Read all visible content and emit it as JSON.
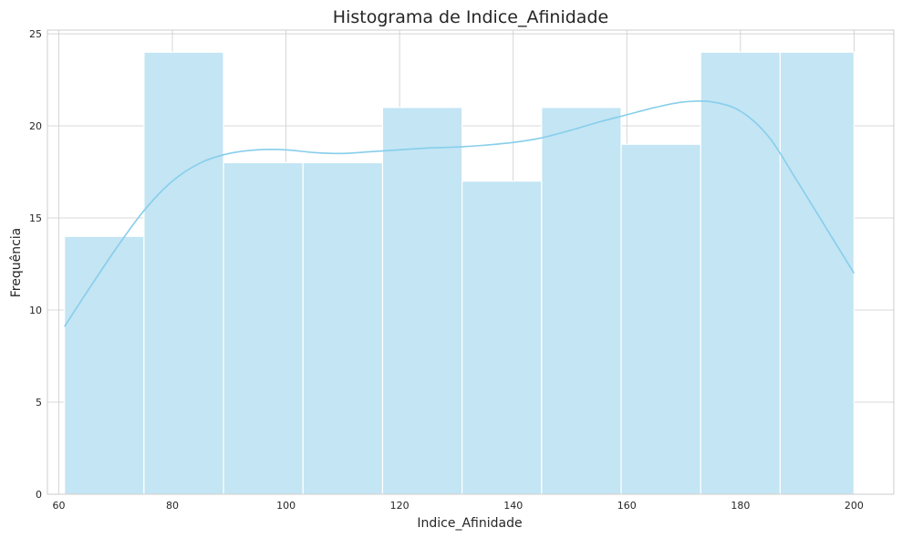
{
  "chart_data": {
    "type": "bar",
    "title": "Histograma de Indice_Afinidade",
    "xlabel": "Indice_Afinidade",
    "ylabel": "Frequência",
    "bin_edges": [
      61,
      75,
      89,
      103,
      117,
      131,
      145,
      159,
      173,
      187,
      200
    ],
    "values": [
      14,
      24,
      18,
      18,
      21,
      17,
      21,
      19,
      24,
      24
    ],
    "kde": {
      "x": [
        61,
        65,
        70,
        75,
        80,
        85,
        90,
        95,
        100,
        105,
        110,
        115,
        120,
        125,
        130,
        135,
        140,
        145,
        150,
        155,
        160,
        165,
        170,
        175,
        180,
        185,
        190,
        195,
        200
      ],
      "y": [
        9.1,
        11.0,
        13.3,
        15.4,
        17.0,
        18.0,
        18.5,
        18.7,
        18.7,
        18.55,
        18.5,
        18.6,
        18.7,
        18.8,
        18.85,
        18.95,
        19.1,
        19.35,
        19.75,
        20.2,
        20.6,
        21.0,
        21.3,
        21.3,
        20.8,
        19.4,
        17.0,
        14.5,
        12.0
      ]
    },
    "xlim": [
      58,
      207
    ],
    "ylim": [
      0,
      25.2
    ],
    "x_ticks": [
      60,
      80,
      100,
      120,
      140,
      160,
      180,
      200
    ],
    "y_ticks": [
      0,
      5,
      10,
      15,
      20,
      25
    ],
    "grid": true,
    "bar_color": "#c3e5f4",
    "line_color": "#87ceeb"
  }
}
